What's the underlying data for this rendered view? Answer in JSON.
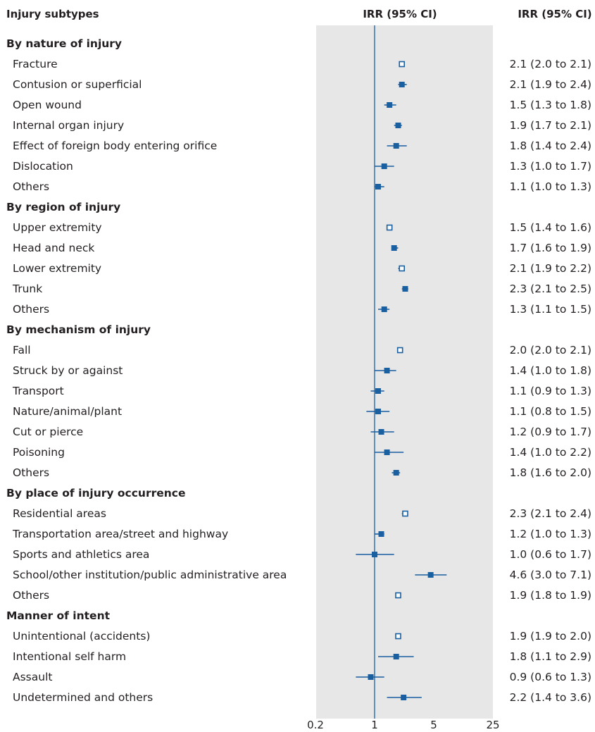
{
  "chart_data": {
    "type": "forest",
    "scale": "log",
    "xlim": [
      0.2,
      25
    ],
    "reference_line": 1,
    "x_ticks": [
      "0.2",
      "1",
      "5",
      "25"
    ],
    "headers": {
      "subtypes": "Injury subtypes",
      "plot": "IRR (95% CI)",
      "values": "IRR (95% CI)"
    },
    "colors": {
      "marker": "#1a5fa0",
      "panel": "#e7e7e8",
      "text": "#231f20"
    },
    "groups": [
      {
        "label": "By nature of injury",
        "rows": [
          {
            "label": "Fracture",
            "irr": 2.1,
            "lo": 2.0,
            "hi": 2.1,
            "ci_text": "2.1 (2.0 to 2.1)"
          },
          {
            "label": "Contusion or superficial",
            "irr": 2.1,
            "lo": 1.9,
            "hi": 2.4,
            "ci_text": "2.1 (1.9 to 2.4)"
          },
          {
            "label": "Open wound",
            "irr": 1.5,
            "lo": 1.3,
            "hi": 1.8,
            "ci_text": "1.5 (1.3 to 1.8)"
          },
          {
            "label": "Internal organ injury",
            "irr": 1.9,
            "lo": 1.7,
            "hi": 2.1,
            "ci_text": "1.9 (1.7 to 2.1)"
          },
          {
            "label": "Effect of foreign body entering orifice",
            "irr": 1.8,
            "lo": 1.4,
            "hi": 2.4,
            "ci_text": "1.8 (1.4 to 2.4)"
          },
          {
            "label": "Dislocation",
            "irr": 1.3,
            "lo": 1.0,
            "hi": 1.7,
            "ci_text": "1.3 (1.0 to 1.7)"
          },
          {
            "label": "Others",
            "irr": 1.1,
            "lo": 1.0,
            "hi": 1.3,
            "ci_text": "1.1 (1.0 to 1.3)"
          }
        ]
      },
      {
        "label": "By region of injury",
        "rows": [
          {
            "label": "Upper extremity",
            "irr": 1.5,
            "lo": 1.4,
            "hi": 1.6,
            "ci_text": "1.5 (1.4 to 1.6)"
          },
          {
            "label": "Head and neck",
            "irr": 1.7,
            "lo": 1.6,
            "hi": 1.9,
            "ci_text": "1.7 (1.6 to 1.9)"
          },
          {
            "label": "Lower extremity",
            "irr": 2.1,
            "lo": 1.9,
            "hi": 2.2,
            "ci_text": "2.1 (1.9 to 2.2)"
          },
          {
            "label": "Trunk",
            "irr": 2.3,
            "lo": 2.1,
            "hi": 2.5,
            "ci_text": "2.3 (2.1 to 2.5)"
          },
          {
            "label": "Others",
            "irr": 1.3,
            "lo": 1.1,
            "hi": 1.5,
            "ci_text": "1.3 (1.1 to 1.5)"
          }
        ]
      },
      {
        "label": "By mechanism of injury",
        "rows": [
          {
            "label": "Fall",
            "irr": 2.0,
            "lo": 2.0,
            "hi": 2.1,
            "ci_text": "2.0 (2.0 to 2.1)"
          },
          {
            "label": "Struck by or against",
            "irr": 1.4,
            "lo": 1.0,
            "hi": 1.8,
            "ci_text": "1.4 (1.0 to 1.8)"
          },
          {
            "label": "Transport",
            "irr": 1.1,
            "lo": 0.9,
            "hi": 1.3,
            "ci_text": "1.1 (0.9 to 1.3)"
          },
          {
            "label": "Nature/animal/plant",
            "irr": 1.1,
            "lo": 0.8,
            "hi": 1.5,
            "ci_text": "1.1 (0.8 to 1.5)"
          },
          {
            "label": "Cut or pierce",
            "irr": 1.2,
            "lo": 0.9,
            "hi": 1.7,
            "ci_text": "1.2 (0.9 to 1.7)"
          },
          {
            "label": "Poisoning",
            "irr": 1.4,
            "lo": 1.0,
            "hi": 2.2,
            "ci_text": "1.4 (1.0 to 2.2)"
          },
          {
            "label": "Others",
            "irr": 1.8,
            "lo": 1.6,
            "hi": 2.0,
            "ci_text": "1.8 (1.6 to 2.0)"
          }
        ]
      },
      {
        "label": "By place of injury occurrence",
        "rows": [
          {
            "label": "Residential areas",
            "irr": 2.3,
            "lo": 2.1,
            "hi": 2.4,
            "ci_text": "2.3 (2.1 to 2.4)"
          },
          {
            "label": "Transportation area/street and highway",
            "irr": 1.2,
            "lo": 1.0,
            "hi": 1.3,
            "ci_text": "1.2 (1.0 to 1.3)"
          },
          {
            "label": "Sports and athletics area",
            "irr": 1.0,
            "lo": 0.6,
            "hi": 1.7,
            "ci_text": "1.0 (0.6 to 1.7)"
          },
          {
            "label": "School/other institution/public administrative area",
            "irr": 4.6,
            "lo": 3.0,
            "hi": 7.1,
            "ci_text": "4.6 (3.0 to 7.1)"
          },
          {
            "label": "Others",
            "irr": 1.9,
            "lo": 1.8,
            "hi": 1.9,
            "ci_text": "1.9 (1.8 to 1.9)"
          }
        ]
      },
      {
        "label": "Manner of intent",
        "rows": [
          {
            "label": "Unintentional (accidents)",
            "irr": 1.9,
            "lo": 1.9,
            "hi": 2.0,
            "ci_text": "1.9 (1.9 to 2.0)"
          },
          {
            "label": "Intentional self harm",
            "irr": 1.8,
            "lo": 1.1,
            "hi": 2.9,
            "ci_text": "1.8 (1.1 to 2.9)"
          },
          {
            "label": "Assault",
            "irr": 0.9,
            "lo": 0.6,
            "hi": 1.3,
            "ci_text": "0.9 (0.6 to 1.3)"
          },
          {
            "label": "Undetermined and others",
            "irr": 2.2,
            "lo": 1.4,
            "hi": 3.6,
            "ci_text": "2.2 (1.4 to 3.6)"
          }
        ]
      }
    ]
  }
}
